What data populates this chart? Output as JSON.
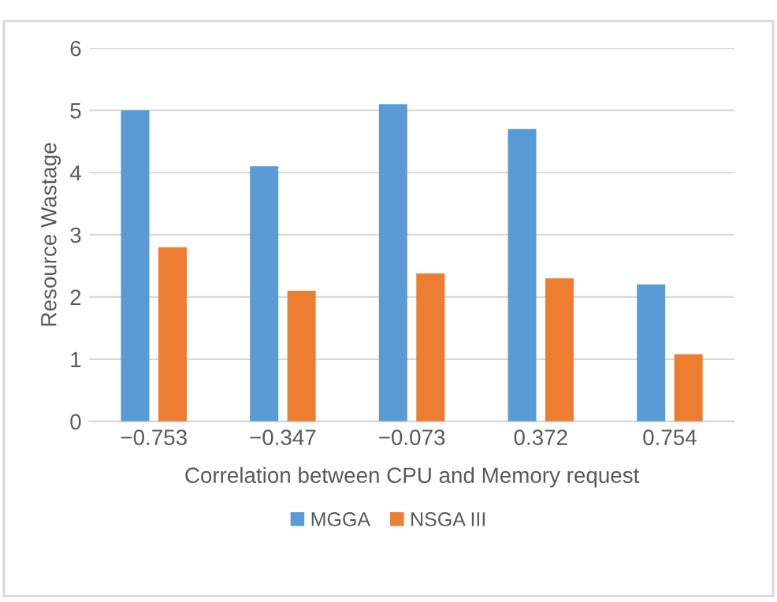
{
  "chart_data": {
    "type": "bar",
    "xlabel": "Correlation between CPU and Memory request",
    "ylabel": "Resource Wastage",
    "categories": [
      "−0.753",
      "−0.347",
      "−0.073",
      "0.372",
      "0.754"
    ],
    "series": [
      {
        "name": "MGGA",
        "color": "#5b9bd5",
        "values": [
          5.0,
          4.1,
          5.1,
          4.7,
          2.2
        ]
      },
      {
        "name": "NSGA III",
        "color": "#ed7d31",
        "values": [
          2.8,
          2.1,
          2.38,
          2.3,
          1.08
        ]
      }
    ],
    "ylim": [
      0,
      6
    ],
    "yticks": [
      0,
      1,
      2,
      3,
      4,
      5,
      6
    ],
    "grid": "y",
    "legend": "bottom"
  }
}
